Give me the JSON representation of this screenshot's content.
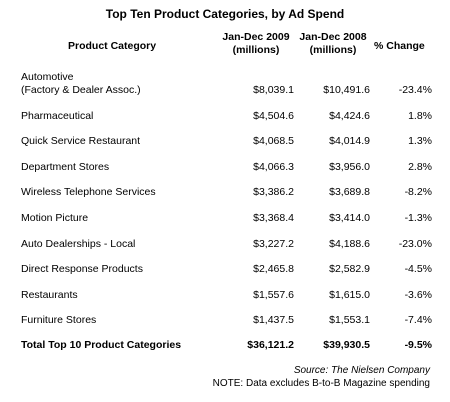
{
  "chart_data": {
    "type": "table",
    "title": "Top Ten Product Categories, by Ad Spend",
    "columns": {
      "category": "Product Category",
      "period_2009_line1": "Jan-Dec 2009",
      "period_2009_line2": "(millions)",
      "period_2008_line1": "Jan-Dec 2008",
      "period_2008_line2": "(millions)",
      "change": "% Change"
    },
    "rows": [
      {
        "category_line1": "Automotive",
        "category_line2": "(Factory & Dealer Assoc.)",
        "v2009": "$8,039.1",
        "v2008": "$10,491.6",
        "change": "-23.4%"
      },
      {
        "category_line1": "Pharmaceutical",
        "v2009": "$4,504.6",
        "v2008": "$4,424.6",
        "change": "1.8%"
      },
      {
        "category_line1": "Quick Service Restaurant",
        "v2009": "$4,068.5",
        "v2008": "$4,014.9",
        "change": "1.3%"
      },
      {
        "category_line1": "Department Stores",
        "v2009": "$4,066.3",
        "v2008": "$3,956.0",
        "change": "2.8%"
      },
      {
        "category_line1": "Wireless Telephone Services",
        "v2009": "$3,386.2",
        "v2008": "$3,689.8",
        "change": "-8.2%"
      },
      {
        "category_line1": "Motion Picture",
        "v2009": "$3,368.4",
        "v2008": "$3,414.0",
        "change": "-1.3%"
      },
      {
        "category_line1": "Auto Dealerships - Local",
        "v2009": "$3,227.2",
        "v2008": "$4,188.6",
        "change": "-23.0%"
      },
      {
        "category_line1": "Direct Response Products",
        "v2009": "$2,465.8",
        "v2008": "$2,582.9",
        "change": "-4.5%"
      },
      {
        "category_line1": "Restaurants",
        "v2009": "$1,557.6",
        "v2008": "$1,615.0",
        "change": "-3.6%"
      },
      {
        "category_line1": "Furniture Stores",
        "v2009": "$1,437.5",
        "v2008": "$1,553.1",
        "change": "-7.4%"
      }
    ],
    "total": {
      "category": "Total Top 10 Product Categories",
      "v2009": "$36,121.2",
      "v2008": "$39,930.5",
      "change": "-9.5%"
    },
    "source": "Source: The Nielsen Company",
    "note": "NOTE: Data excludes B-to-B Magazine spending"
  }
}
